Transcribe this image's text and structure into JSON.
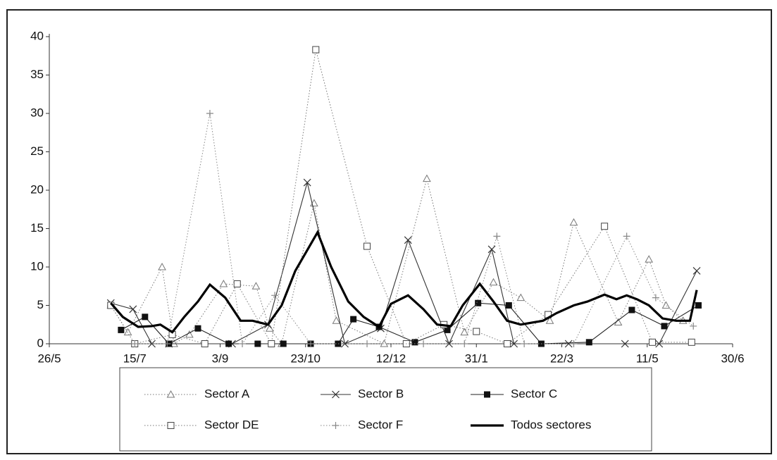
{
  "chart_data": {
    "type": "line",
    "xlim": [
      0,
      400
    ],
    "xticks": [
      {
        "value": 0,
        "label": "26/5"
      },
      {
        "value": 50,
        "label": "15/7"
      },
      {
        "value": 100,
        "label": "3/9"
      },
      {
        "value": 150,
        "label": "23/10"
      },
      {
        "value": 200,
        "label": "12/12"
      },
      {
        "value": 250,
        "label": "31/1"
      },
      {
        "value": 300,
        "label": "22/3"
      },
      {
        "value": 350,
        "label": "11/5"
      },
      {
        "value": 400,
        "label": "30/6"
      }
    ],
    "ylim": [
      0,
      40
    ],
    "yticks": [
      0,
      5,
      10,
      15,
      20,
      25,
      30,
      35,
      40
    ],
    "grid": false,
    "series": [
      {
        "name": "Sector A",
        "color": "#777777",
        "line_style": "dotted",
        "marker": "triangle",
        "x": [
          36,
          46,
          66,
          73,
          82,
          102,
          121,
          129,
          136,
          155,
          168,
          196,
          221,
          243,
          260,
          276,
          293,
          307,
          333,
          351,
          361,
          371
        ],
        "values": [
          5,
          1.5,
          10,
          0,
          1.2,
          7.8,
          7.5,
          2,
          0,
          18.3,
          3,
          0,
          21.5,
          1.5,
          8,
          6,
          3,
          15.8,
          2.8,
          11,
          5,
          3
        ]
      },
      {
        "name": "Sector B",
        "color": "#333333",
        "line_style": "solid",
        "marker": "x",
        "x": [
          36,
          49,
          60,
          70,
          107,
          128,
          151,
          173,
          194,
          210,
          234,
          259,
          272,
          304,
          337,
          357,
          379
        ],
        "values": [
          5.3,
          4.5,
          0,
          0,
          0,
          2.5,
          21,
          0,
          2,
          13.5,
          0,
          12.3,
          0,
          0,
          0,
          0,
          9.5
        ]
      },
      {
        "name": "Sector C",
        "color": "#222222",
        "line_style": "solid",
        "marker": "square-filled",
        "x": [
          42,
          56,
          70,
          87,
          105,
          122,
          137,
          153,
          169,
          178,
          193,
          214,
          233,
          251,
          269,
          288,
          316,
          341,
          360,
          380
        ],
        "values": [
          1.8,
          3.5,
          0,
          2,
          0,
          0,
          0,
          0,
          0,
          3.2,
          2.2,
          0.2,
          1.8,
          5.3,
          5,
          0,
          0.2,
          4.4,
          2.3,
          5
        ]
      },
      {
        "name": "Sector DE",
        "color": "#777777",
        "line_style": "dotted",
        "marker": "square",
        "x": [
          36,
          50,
          72,
          91,
          110,
          130,
          156,
          186,
          209,
          231,
          250,
          268,
          292,
          325,
          353,
          376
        ],
        "values": [
          5,
          0,
          1.2,
          0,
          7.8,
          0,
          38.3,
          12.7,
          0,
          2.5,
          1.6,
          0,
          3.8,
          15.3,
          0.2,
          0.2
        ]
      },
      {
        "name": "Sector F",
        "color": "#888888",
        "line_style": "dotted",
        "marker": "plus",
        "x": [
          50,
          69,
          94,
          113,
          132,
          153,
          186,
          219,
          243,
          262,
          278,
          307,
          338,
          355,
          377
        ],
        "values": [
          0,
          0,
          30,
          0,
          6.3,
          0,
          0,
          0,
          0,
          14,
          0,
          0,
          14,
          6,
          2.3
        ]
      },
      {
        "name": "Todos sectores",
        "color": "#000000",
        "line_style": "thick",
        "marker": "none",
        "x": [
          36,
          43,
          52,
          60,
          65,
          72,
          79,
          87,
          94,
          103,
          112,
          119,
          128,
          136,
          144,
          157,
          165,
          175,
          184,
          193,
          200,
          210,
          219,
          227,
          235,
          242,
          252,
          260,
          268,
          276,
          289,
          297,
          307,
          315,
          325,
          332,
          338,
          344,
          351,
          359,
          367,
          375,
          379
        ],
        "values": [
          5.3,
          3.5,
          2.2,
          2.3,
          2.5,
          1.5,
          3.5,
          5.5,
          7.7,
          6,
          3,
          3,
          2.5,
          5,
          9.5,
          14.5,
          10,
          5.5,
          3.5,
          2.2,
          5.2,
          6.3,
          4.5,
          2.5,
          2.3,
          5,
          7.8,
          5.5,
          3,
          2.5,
          3,
          4,
          5,
          5.5,
          6.4,
          5.8,
          6.3,
          5.8,
          5,
          3.3,
          3,
          3,
          7
        ]
      }
    ]
  }
}
